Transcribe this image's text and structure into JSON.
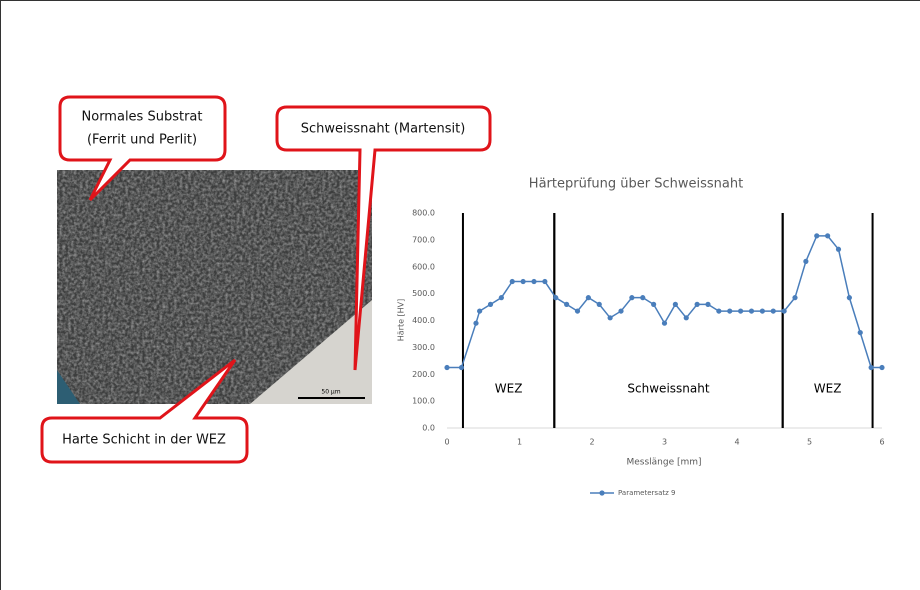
{
  "callouts": {
    "substrate": [
      "Normales Substrat",
      "(Ferrit und Perlit)"
    ],
    "weld": "Schweissnaht (Martensit)",
    "hard_layer": "Harte Schicht in der WEZ"
  },
  "micrograph": {
    "scale_bar": "50 µm"
  },
  "chart_data": {
    "type": "line",
    "title": "Härteprüfung über Schweissnaht",
    "x_label": "Messlänge [mm]",
    "y_label": "Härte [HV]",
    "x": [
      0,
      0.2,
      0.4,
      0.45,
      0.6,
      0.75,
      0.9,
      1.05,
      1.2,
      1.35,
      1.5,
      1.65,
      1.8,
      1.95,
      2.1,
      2.25,
      2.4,
      2.55,
      2.7,
      2.85,
      3.0,
      3.15,
      3.3,
      3.45,
      3.6,
      3.75,
      3.9,
      4.05,
      4.2,
      4.35,
      4.5,
      4.65,
      4.8,
      4.95,
      5.1,
      5.25,
      5.4,
      5.55,
      5.7,
      5.85,
      6.0
    ],
    "series": [
      {
        "name": "Parametersatz 9",
        "color": "#4a7ebb",
        "values": [
          225,
          225,
          390,
          435,
          460,
          485,
          545,
          545,
          545,
          545,
          485,
          460,
          435,
          485,
          460,
          410,
          435,
          485,
          485,
          460,
          390,
          460,
          410,
          460,
          460,
          435,
          435,
          435,
          435,
          435,
          435,
          435,
          485,
          620,
          715,
          715,
          665,
          485,
          355,
          225,
          225
        ]
      }
    ],
    "zones": [
      {
        "label": "WEZ",
        "from": 0.22,
        "to": 1.48
      },
      {
        "label": "Schweissnaht",
        "from": 1.48,
        "to": 4.63
      },
      {
        "label": "WEZ",
        "from": 4.63,
        "to": 5.87
      }
    ],
    "xlim": [
      0,
      6
    ],
    "xticks": [
      0,
      1,
      2,
      3,
      4,
      5,
      6
    ],
    "ylim": [
      0,
      800
    ],
    "yticks": [
      {
        "value": 0,
        "label": "0.0"
      },
      {
        "value": 100,
        "label": "100.0"
      },
      {
        "value": 200,
        "label": "200.0"
      },
      {
        "value": 300,
        "label": "300.0"
      },
      {
        "value": 400,
        "label": "400.0"
      },
      {
        "value": 500,
        "label": "500.0"
      },
      {
        "value": 600,
        "label": "600.0"
      },
      {
        "value": 700,
        "label": "700.0"
      },
      {
        "value": 800,
        "label": "800.0"
      }
    ],
    "grid": false,
    "legend": "bottom"
  }
}
